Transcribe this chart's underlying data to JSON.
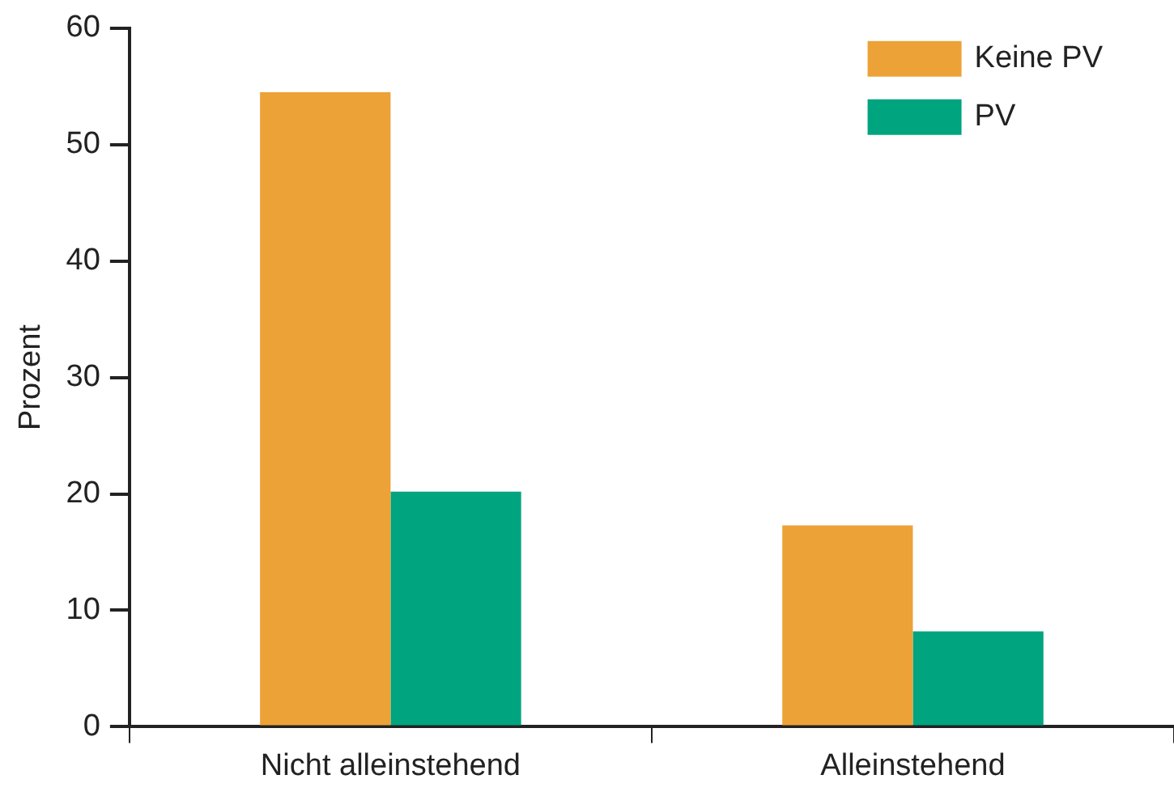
{
  "chart_data": {
    "type": "bar",
    "ylabel": "Prozent",
    "categories": [
      "Nicht alleinstehend",
      "Alleinstehend"
    ],
    "series": [
      {
        "name": "Keine PV",
        "color": "#eca236",
        "values": [
          54.5,
          17.3
        ]
      },
      {
        "name": "PV",
        "color": "#00a47e",
        "values": [
          20.2,
          8.2
        ]
      }
    ],
    "ylim": [
      0,
      60
    ],
    "yticks": [
      0,
      10,
      20,
      30,
      40,
      50,
      60
    ],
    "grid": false,
    "legend": "top right"
  }
}
